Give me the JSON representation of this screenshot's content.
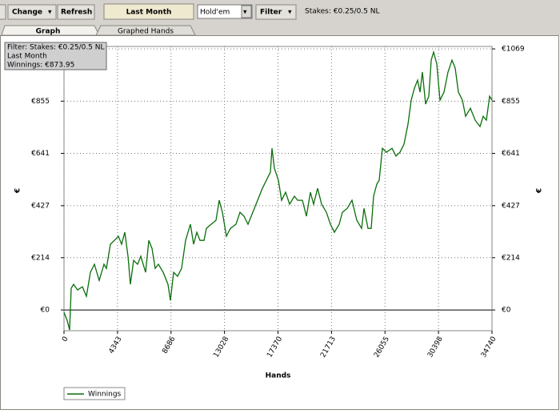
{
  "toolbar": {
    "buttons": [
      "Change",
      "Refresh",
      "Last Month",
      "Filter"
    ],
    "game": "Hold'em",
    "stakes": "Stakes: €0.25/0.5 NL"
  },
  "tabs": [
    "Graph",
    "Graphed Hands"
  ],
  "info": [
    "Filter: Stakes: €0.25/0.5 NL",
    "Last Month",
    "Winnings: €873.95"
  ],
  "chart_data": {
    "type": "line",
    "x_label": "Hands",
    "y_label": "€",
    "grid": true,
    "legend": "lower left",
    "xlim": [
      0,
      34740
    ],
    "xticks": [
      0,
      4343,
      8686,
      13028,
      17370,
      21713,
      26055,
      30398,
      34740
    ],
    "ylim": [
      -85,
      1079
    ],
    "yticks": [
      {
        "value": 0,
        "label": "€0"
      },
      {
        "value": 214,
        "label": "€214"
      },
      {
        "value": 427,
        "label": "€427"
      },
      {
        "value": 641,
        "label": "€641"
      },
      {
        "value": 855,
        "label": "€855"
      },
      {
        "value": 1069,
        "label": "€1069"
      }
    ],
    "x": [
      0,
      260,
      455,
      584,
      779,
      1104,
      1493,
      1818,
      2143,
      2467,
      2857,
      3247,
      3441,
      3766,
      4091,
      4415,
      4675,
      4935,
      5194,
      5389,
      5649,
      5974,
      6233,
      6623,
      6883,
      7142,
      7402,
      7662,
      8051,
      8441,
      8636,
      8895,
      9220,
      9545,
      9869,
      10259,
      10519,
      10778,
      11038,
      11363,
      11558,
      11947,
      12337,
      12596,
      12856,
      13181,
      13505,
      13960,
      14285,
      14609,
      14934,
      15323,
      15713,
      16103,
      16427,
      16752,
      16882,
      17077,
      17401,
      17661,
      17986,
      18310,
      18700,
      18960,
      19349,
      19674,
      19998,
      20258,
      20583,
      20907,
      21297,
      21622,
      21946,
      22336,
      22596,
      22985,
      23375,
      23764,
      24154,
      24349,
      24673,
      24933,
      25128,
      25388,
      25582,
      25842,
      26167,
      26621,
      26946,
      27271,
      27595,
      27920,
      28180,
      28439,
      28699,
      28894,
      29089,
      29348,
      29608,
      29803,
      29998,
      30257,
      30517,
      30842,
      31166,
      31491,
      31751,
      32010,
      32335,
      32595,
      32984,
      33374,
      33764,
      34023,
      34283,
      34543,
      34740
    ],
    "series": [
      {
        "name": "Winnings",
        "color": "#0a6e0a",
        "values": [
          -10,
          -43,
          -82,
          89,
          105,
          82,
          95,
          56,
          154,
          187,
          121,
          187,
          170,
          269,
          285,
          302,
          269,
          318,
          220,
          105,
          203,
          187,
          220,
          154,
          285,
          252,
          170,
          187,
          154,
          105,
          39,
          154,
          138,
          170,
          285,
          351,
          269,
          318,
          285,
          285,
          334,
          351,
          367,
          449,
          400,
          302,
          334,
          351,
          400,
          384,
          351,
          400,
          449,
          498,
          531,
          564,
          662,
          580,
          531,
          449,
          482,
          433,
          466,
          449,
          449,
          384,
          482,
          433,
          498,
          433,
          400,
          351,
          318,
          351,
          400,
          416,
          449,
          367,
          334,
          416,
          334,
          334,
          466,
          515,
          531,
          662,
          646,
          662,
          630,
          646,
          679,
          761,
          859,
          908,
          941,
          892,
          974,
          843,
          875,
          1023,
          1056,
          1007,
          859,
          892,
          974,
          1023,
          990,
          892,
          859,
          793,
          826,
          777,
          751,
          793,
          777,
          875,
          859
        ]
      }
    ]
  }
}
